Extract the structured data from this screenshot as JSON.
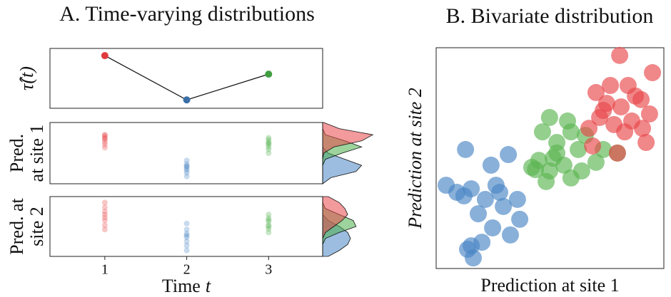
{
  "chart_data": [
    {
      "type": "line",
      "title": "A. Time-varying distributions",
      "y_label": "τ̂(t)",
      "x": [
        1,
        2,
        3
      ],
      "values": [
        0.88,
        0.14,
        0.57
      ],
      "point_colors": [
        "#e03a3c",
        "#3b6fa8",
        "#3f9e3f"
      ],
      "color": "#111111",
      "xlim": [
        0.33,
        3.66
      ],
      "ylim": [
        0,
        1
      ]
    },
    {
      "type": "strip",
      "y_label": [
        "Pred.",
        "at site 1"
      ],
      "xlim": [
        0.33,
        3.66
      ],
      "ylim": [
        0,
        10
      ],
      "series": [
        {
          "color": "#e8474a",
          "x": 1,
          "values": [
            8.0,
            7.6,
            7.2,
            6.8,
            6.4,
            7.9,
            7.4,
            5.9
          ]
        },
        {
          "color": "#4a86c5",
          "x": 2,
          "values": [
            3.8,
            3.2,
            2.8,
            2.5,
            2.2,
            1.8,
            1.2,
            2.9
          ]
        },
        {
          "color": "#4daf4a",
          "x": 3,
          "values": [
            7.2,
            6.8,
            6.4,
            6.0,
            5.6,
            5.0,
            6.6,
            7.5
          ]
        }
      ],
      "density": {
        "xlim": [
          0,
          1
        ],
        "y": [
          0,
          1,
          2,
          3,
          4,
          5,
          6,
          7,
          8,
          9,
          10
        ],
        "series": [
          {
            "color": "#4a86c5",
            "values": [
              0,
              0.15,
              0.6,
              0.7,
              0.4,
              0.1,
              0,
              0,
              0,
              0,
              0
            ]
          },
          {
            "color": "#4daf4a",
            "values": [
              0,
              0,
              0,
              0,
              0.05,
              0.35,
              0.7,
              0.4,
              0.05,
              0,
              0
            ]
          },
          {
            "color": "#e8474a",
            "values": [
              0,
              0,
              0,
              0,
              0,
              0.02,
              0.2,
              0.7,
              0.9,
              0.3,
              0.02
            ]
          }
        ]
      }
    },
    {
      "type": "strip",
      "y_label": [
        "Pred. at",
        "site 2"
      ],
      "x_label": [
        "Time",
        "t"
      ],
      "xlim": [
        0.33,
        3.66
      ],
      "ylim": [
        0,
        10
      ],
      "xticks": [
        1,
        2,
        3
      ],
      "series": [
        {
          "color": "#e8474a",
          "x": 1,
          "values": [
            9.0,
            8.2,
            7.5,
            7.0,
            6.5,
            6.0,
            5.2,
            4.5
          ]
        },
        {
          "color": "#4a86c5",
          "x": 2,
          "values": [
            5.5,
            4.5,
            3.8,
            3.2,
            2.5,
            1.8,
            1.0,
            3.5
          ]
        },
        {
          "color": "#4daf4a",
          "x": 3,
          "values": [
            7.0,
            6.4,
            5.8,
            5.2,
            4.6,
            4.0,
            6.1,
            5.0
          ]
        }
      ],
      "density": {
        "xlim": [
          0,
          1
        ],
        "y": [
          0,
          1,
          2,
          3,
          4,
          5,
          6,
          7,
          8,
          9,
          10
        ],
        "series": [
          {
            "color": "#4a86c5",
            "values": [
              0.1,
              0.3,
              0.45,
              0.5,
              0.45,
              0.3,
              0.1,
              0,
              0,
              0,
              0
            ]
          },
          {
            "color": "#4daf4a",
            "values": [
              0,
              0,
              0,
              0.05,
              0.3,
              0.6,
              0.55,
              0.3,
              0.05,
              0,
              0
            ]
          },
          {
            "color": "#e8474a",
            "values": [
              0,
              0,
              0,
              0,
              0.05,
              0.2,
              0.35,
              0.45,
              0.4,
              0.3,
              0.1
            ]
          }
        ]
      }
    },
    {
      "type": "scatter",
      "title": "B. Bivariate distribution",
      "x_label": "Prediction at site 1",
      "y_label": "Prediction at site 2",
      "xlim": [
        0,
        10
      ],
      "ylim": [
        0,
        10
      ],
      "series": [
        {
          "color": "#4a86c5",
          "x": [
            0.44,
            1.29,
            2.41,
            3.17,
            1.54,
            2.79,
            3.57,
            1.85,
            2.48,
            3.26,
            3.67,
            1.54,
            2.01,
            2.95,
            2.16,
            1.22,
            1.38,
            1.63,
            2.63,
            0.91
          ],
          "values": [
            3.77,
            5.39,
            4.68,
            5.16,
            3.61,
            3.45,
            3.13,
            2.48,
            1.84,
            1.52,
            2.23,
            1.03,
            1.19,
            2.81,
            3.13,
            3.29,
            0.87,
            0.48,
            3.77,
            3.45
          ]
        },
        {
          "color": "#5ab552",
          "x": [
            4.98,
            5.77,
            4.67,
            5.92,
            6.55,
            7.34,
            7.96,
            6.24,
            5.3,
            4.36,
            4.98,
            5.61,
            6.39,
            7.02,
            4.83,
            5.92,
            5.3,
            4.51,
            4.2,
            5.14
          ],
          "values": [
            6.84,
            6.68,
            6.19,
            6.19,
            6.03,
            5.39,
            5.23,
            5.39,
            5.23,
            4.48,
            4.42,
            4.68,
            4.42,
            4.81,
            3.94,
            4.1,
            5.71,
            4.9,
            4.58,
            5.0
          ]
        },
        {
          "color": "#e8474a",
          "x": [
            8.06,
            9.5,
            7.65,
            8.43,
            7.02,
            9.0,
            7.49,
            8.12,
            9.37,
            7.18,
            8.59,
            7.81,
            9.06,
            6.71,
            9.22,
            7.96,
            6.87,
            8.75,
            7.34,
            8.28
          ],
          "values": [
            9.65,
            8.87,
            8.29,
            8.29,
            7.97,
            7.65,
            7.48,
            7.32,
            7.0,
            6.84,
            6.68,
            6.52,
            6.35,
            6.35,
            5.71,
            5.23,
            5.55,
            7.81,
            7.16,
            6.19
          ]
        }
      ]
    }
  ]
}
